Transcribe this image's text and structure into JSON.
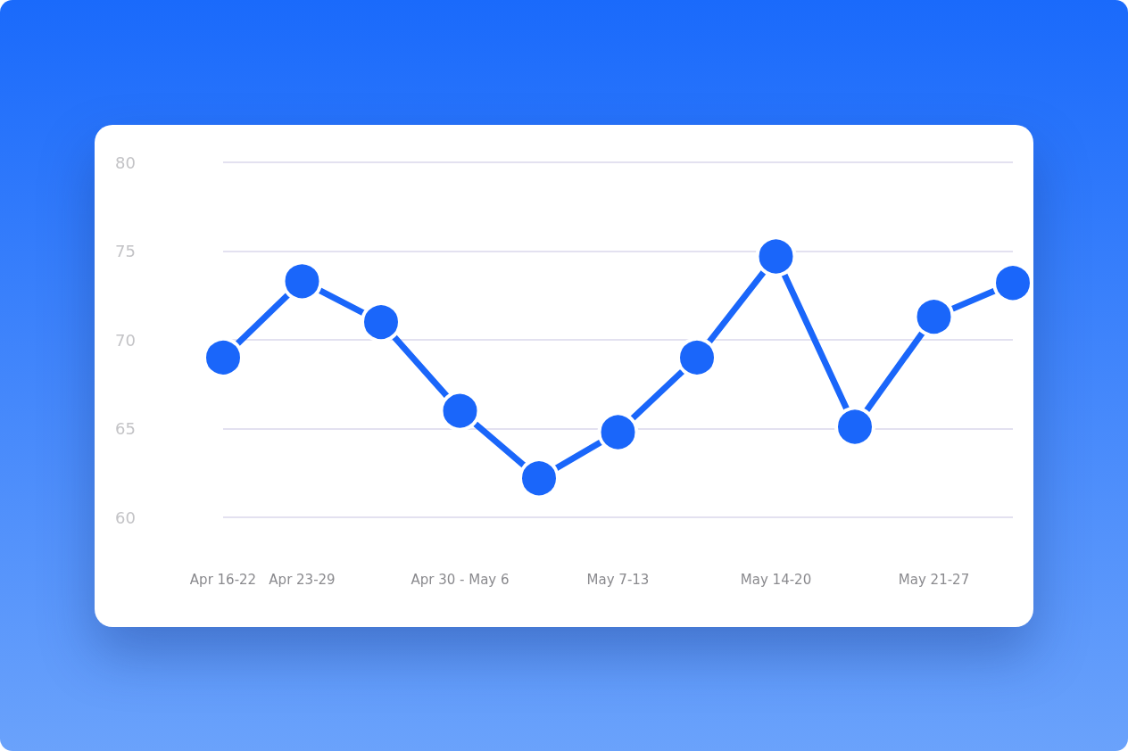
{
  "chart_data": {
    "type": "line",
    "categories": [
      "Apr 16-22",
      "Apr 23-29",
      null,
      "Apr 30 - May 6",
      null,
      "May 7-13",
      null,
      "May 14-20",
      null,
      "May 21-27",
      null
    ],
    "series": [
      {
        "color": "#1a66fa",
        "values": [
          69,
          73.3,
          71,
          66,
          62.2,
          64.8,
          69,
          74.7,
          65.1,
          71.3,
          73.2
        ]
      }
    ],
    "ylim": [
      60,
      80
    ],
    "yticks": [
      60,
      65,
      70,
      75,
      80
    ],
    "grid": "y",
    "marker": "circle",
    "line_style": "solid"
  }
}
